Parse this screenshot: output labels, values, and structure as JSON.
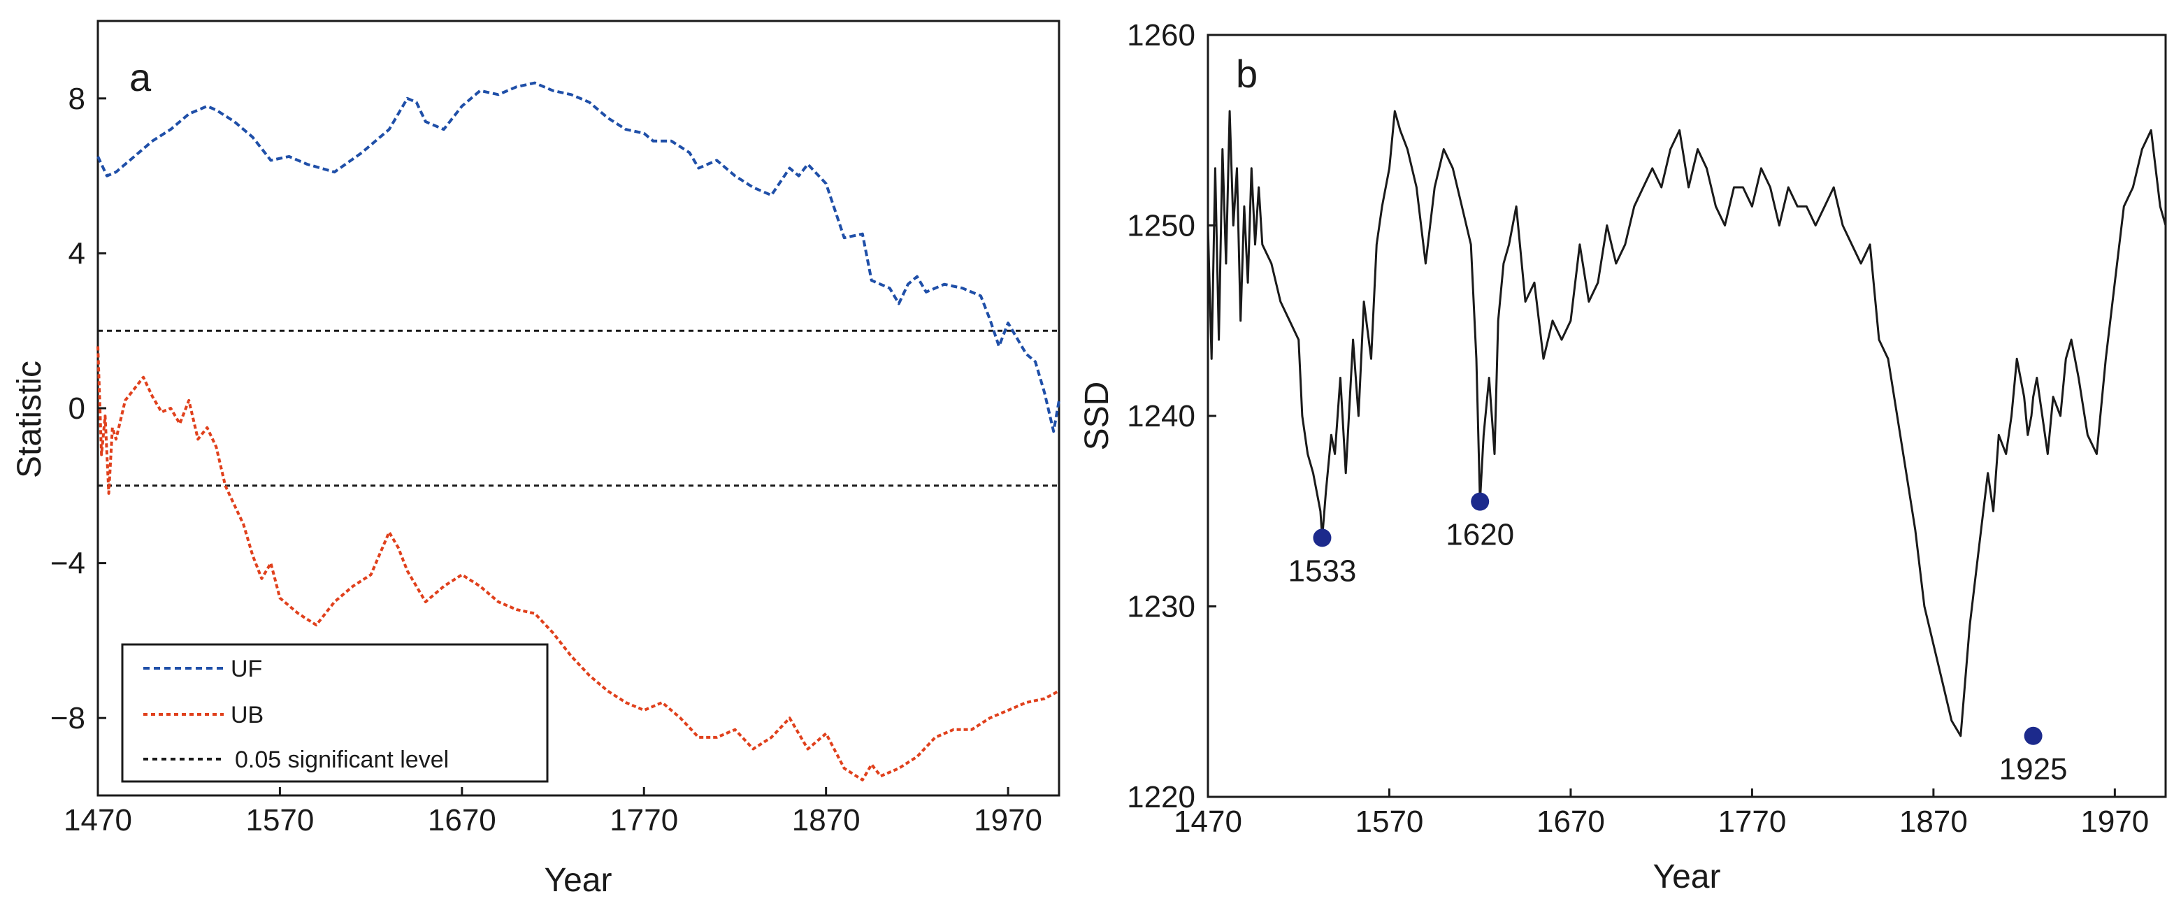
{
  "chart_data": [
    {
      "panel": "a",
      "type": "line",
      "xlabel": "Year",
      "ylabel": "Statistic",
      "xlim": [
        1470,
        1998
      ],
      "ylim": [
        -10,
        10
      ],
      "xticks": [
        1470,
        1570,
        1670,
        1770,
        1870,
        1970
      ],
      "xtick_labels": [
        "1470",
        "1570",
        "1670",
        "1770",
        "1870",
        "1970"
      ],
      "yticks": [
        8,
        4,
        0,
        -4,
        -8
      ],
      "ytick_labels": [
        "8",
        "4",
        "0",
        "−4",
        "−8"
      ],
      "grid": false,
      "legend_position": "bottom-left",
      "series": [
        {
          "name": "UF",
          "color": "#1f4fa8",
          "style": "dashed",
          "x": [
            1470,
            1475,
            1480,
            1490,
            1500,
            1510,
            1520,
            1530,
            1535,
            1545,
            1555,
            1565,
            1575,
            1585,
            1600,
            1615,
            1630,
            1640,
            1645,
            1650,
            1660,
            1670,
            1680,
            1690,
            1700,
            1710,
            1720,
            1730,
            1740,
            1750,
            1760,
            1770,
            1775,
            1785,
            1795,
            1800,
            1810,
            1820,
            1830,
            1840,
            1850,
            1855,
            1860,
            1870,
            1880,
            1890,
            1895,
            1905,
            1910,
            1915,
            1920,
            1925,
            1935,
            1945,
            1955,
            1960,
            1965,
            1970,
            1975,
            1980,
            1985,
            1990,
            1995,
            1998
          ],
          "y": [
            6.5,
            6.0,
            6.1,
            6.5,
            6.9,
            7.2,
            7.6,
            7.8,
            7.7,
            7.4,
            7.0,
            6.4,
            6.5,
            6.3,
            6.1,
            6.6,
            7.2,
            8.0,
            7.9,
            7.4,
            7.2,
            7.8,
            8.2,
            8.1,
            8.3,
            8.4,
            8.2,
            8.1,
            7.9,
            7.5,
            7.2,
            7.1,
            6.9,
            6.9,
            6.6,
            6.2,
            6.4,
            6.0,
            5.7,
            5.5,
            6.2,
            6.0,
            6.3,
            5.8,
            4.4,
            4.5,
            3.3,
            3.1,
            2.7,
            3.2,
            3.4,
            3.0,
            3.2,
            3.1,
            2.9,
            2.3,
            1.6,
            2.2,
            1.8,
            1.4,
            1.2,
            0.4,
            -0.6,
            0.2
          ]
        },
        {
          "name": "UB",
          "color": "#e0401c",
          "style": "dashed",
          "x": [
            1470,
            1472,
            1474,
            1476,
            1478,
            1480,
            1485,
            1490,
            1495,
            1500,
            1505,
            1510,
            1515,
            1520,
            1525,
            1530,
            1535,
            1540,
            1545,
            1550,
            1555,
            1560,
            1565,
            1570,
            1580,
            1590,
            1600,
            1610,
            1620,
            1630,
            1635,
            1640,
            1645,
            1650,
            1660,
            1670,
            1680,
            1690,
            1700,
            1710,
            1720,
            1730,
            1740,
            1750,
            1760,
            1770,
            1780,
            1790,
            1800,
            1810,
            1820,
            1830,
            1840,
            1850,
            1860,
            1870,
            1880,
            1890,
            1895,
            1900,
            1910,
            1920,
            1930,
            1940,
            1950,
            1960,
            1970,
            1980,
            1990,
            1998
          ],
          "y": [
            1.6,
            -1.2,
            -0.2,
            -2.2,
            -0.5,
            -0.8,
            0.2,
            0.5,
            0.8,
            0.3,
            -0.1,
            0.0,
            -0.4,
            0.2,
            -0.8,
            -0.5,
            -1.0,
            -2.0,
            -2.5,
            -3.0,
            -3.8,
            -4.4,
            -4.0,
            -4.9,
            -5.3,
            -5.6,
            -5.0,
            -4.6,
            -4.3,
            -3.2,
            -3.6,
            -4.2,
            -4.6,
            -5.0,
            -4.6,
            -4.3,
            -4.6,
            -5.0,
            -5.2,
            -5.3,
            -5.8,
            -6.4,
            -6.9,
            -7.3,
            -7.6,
            -7.8,
            -7.6,
            -8.0,
            -8.5,
            -8.5,
            -8.3,
            -8.8,
            -8.5,
            -8.0,
            -8.8,
            -8.4,
            -9.3,
            -9.6,
            -9.2,
            -9.5,
            -9.3,
            -9.0,
            -8.5,
            -8.3,
            -8.3,
            -8.0,
            -7.8,
            -7.6,
            -7.5,
            -7.3
          ]
        },
        {
          "name": "0.05 significant level",
          "color": "#1a1a1a",
          "style": "dotted",
          "levels": [
            2,
            -2
          ]
        }
      ]
    },
    {
      "panel": "b",
      "type": "line",
      "xlabel": "Year",
      "ylabel": "SSD",
      "xlim": [
        1470,
        1998
      ],
      "ylim": [
        1220,
        1260
      ],
      "xticks": [
        1470,
        1570,
        1670,
        1770,
        1870,
        1970
      ],
      "xtick_labels": [
        "1470",
        "1570",
        "1670",
        "1770",
        "1870",
        "1970"
      ],
      "yticks": [
        1260,
        1250,
        1240,
        1230,
        1220
      ],
      "ytick_labels": [
        "1260",
        "1250",
        "1240",
        "1230",
        "1220"
      ],
      "grid": false,
      "series": [
        {
          "name": "",
          "color": "#1a1a1a",
          "style": "solid",
          "x": [
            1470,
            1472,
            1474,
            1476,
            1478,
            1480,
            1482,
            1484,
            1486,
            1488,
            1490,
            1492,
            1494,
            1496,
            1498,
            1500,
            1505,
            1510,
            1515,
            1520,
            1522,
            1525,
            1528,
            1530,
            1532,
            1533,
            1535,
            1538,
            1540,
            1543,
            1546,
            1550,
            1553,
            1556,
            1560,
            1563,
            1566,
            1570,
            1573,
            1576,
            1580,
            1585,
            1590,
            1595,
            1600,
            1605,
            1610,
            1615,
            1618,
            1620,
            1622,
            1625,
            1628,
            1630,
            1633,
            1636,
            1640,
            1645,
            1650,
            1655,
            1660,
            1665,
            1670,
            1675,
            1680,
            1685,
            1690,
            1695,
            1700,
            1705,
            1710,
            1715,
            1720,
            1725,
            1730,
            1735,
            1740,
            1745,
            1750,
            1755,
            1760,
            1765,
            1770,
            1775,
            1780,
            1785,
            1790,
            1795,
            1800,
            1805,
            1810,
            1815,
            1820,
            1825,
            1830,
            1835,
            1840,
            1845,
            1850,
            1855,
            1860,
            1865,
            1870,
            1875,
            1880,
            1885,
            1890,
            1895,
            1900,
            1903,
            1906,
            1910,
            1913,
            1916,
            1920,
            1922,
            1924,
            1925,
            1927,
            1930,
            1933,
            1936,
            1940,
            1943,
            1946,
            1950,
            1955,
            1960,
            1965,
            1970,
            1975,
            1980,
            1985,
            1990,
            1995,
            1998
          ],
          "y": [
            1250,
            1243,
            1253,
            1244,
            1254,
            1248,
            1256,
            1250,
            1253,
            1245,
            1251,
            1247,
            1253,
            1249,
            1252,
            1249,
            1248,
            1246,
            1245,
            1244,
            1240,
            1238,
            1237,
            1236,
            1235,
            1233.6,
            1236,
            1239,
            1238,
            1242,
            1237,
            1244,
            1240,
            1246,
            1243,
            1249,
            1251,
            1253,
            1256,
            1255,
            1254,
            1252,
            1248,
            1252,
            1254,
            1253,
            1251,
            1249,
            1243,
            1235.5,
            1239,
            1242,
            1238,
            1245,
            1248,
            1249,
            1251,
            1246,
            1247,
            1243,
            1245,
            1244,
            1245,
            1249,
            1246,
            1247,
            1250,
            1248,
            1249,
            1251,
            1252,
            1253,
            1252,
            1254,
            1255,
            1252,
            1254,
            1253,
            1251,
            1250,
            1252,
            1252,
            1251,
            1253,
            1252,
            1250,
            1252,
            1251,
            1251,
            1250,
            1251,
            1252,
            1250,
            1249,
            1248,
            1249,
            1244,
            1243,
            1240,
            1237,
            1234,
            1230,
            1228,
            1226,
            1224,
            1223.2,
            1229,
            1233,
            1237,
            1235,
            1239,
            1238,
            1240,
            1243,
            1241,
            1239,
            1240,
            1241,
            1242,
            1240,
            1238,
            1241,
            1240,
            1243,
            1244,
            1242,
            1239,
            1238,
            1243,
            1247,
            1251,
            1252,
            1254,
            1255,
            1251,
            1250
          ],
          "markers": [
            {
              "x": 1533,
              "y": 1233.6,
              "label": "1533"
            },
            {
              "x": 1620,
              "y": 1235.5,
              "label": "1620"
            },
            {
              "x": 1925,
              "y": 1223.2,
              "label": "1925"
            }
          ],
          "marker_color": "#1c2a8c"
        }
      ]
    }
  ],
  "panels": {
    "a": {
      "letter": "a",
      "xlabel": "Year",
      "ylabel": "Statistic",
      "legend": {
        "uf": "UF",
        "ub": "UB",
        "sig": "0.05 significant level"
      }
    },
    "b": {
      "letter": "b",
      "xlabel": "Year",
      "ylabel": "SSD"
    }
  },
  "colors": {
    "uf": "#1f4fa8",
    "ub": "#e0401c",
    "sig": "#1a1a1a",
    "ssd": "#1a1a1a",
    "marker": "#1c2a8c",
    "axis": "#1a1a1a"
  }
}
